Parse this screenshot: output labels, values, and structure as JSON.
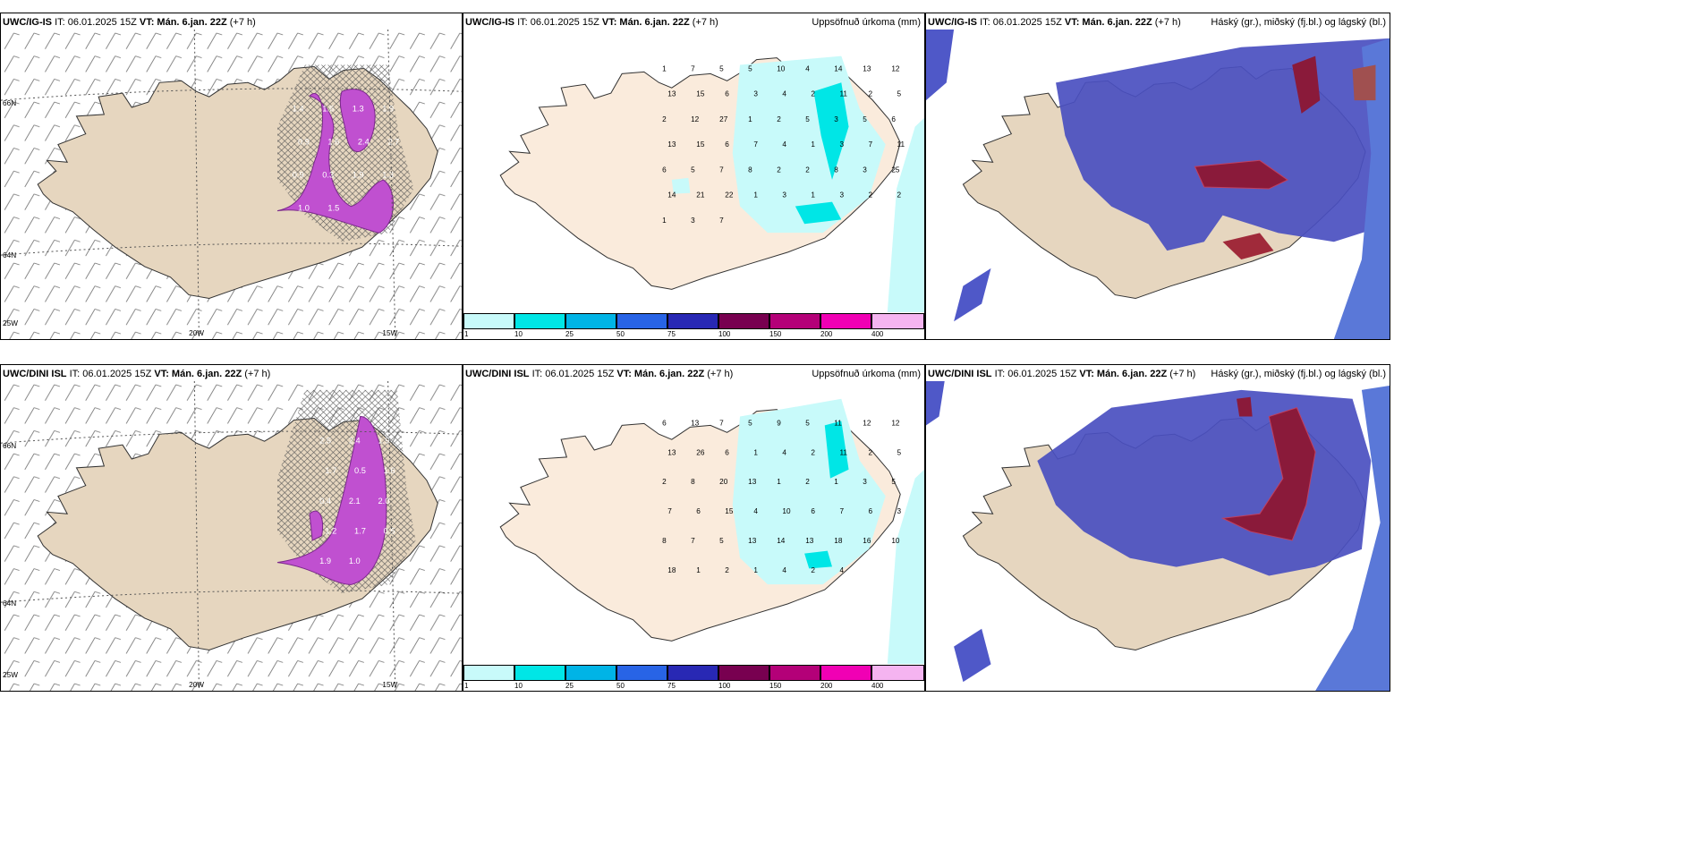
{
  "panels": [
    {
      "model": "UWC/IG-IS",
      "it": "IT: 06.01.2025 15Z",
      "vt": "VT: Mán. 6.jan. 22Z",
      "lead": "(+7 h)",
      "right": ""
    },
    {
      "model": "UWC/IG-IS",
      "it": "IT: 06.01.2025 15Z",
      "vt": "VT: Mán. 6.jan. 22Z",
      "lead": "(+7 h)",
      "right": "Uppsöfnuð úrkoma (mm)"
    },
    {
      "model": "UWC/IG-IS",
      "it": "IT: 06.01.2025 15Z",
      "vt": "VT: Mán. 6.jan. 22Z",
      "lead": "(+7 h)",
      "right": "Háský (gr.), miðský (fj.bl.) og lágský (bl.)"
    },
    {
      "model": "UWC/DINI ISL",
      "it": "IT: 06.01.2025 15Z",
      "vt": "VT: Mán. 6.jan. 22Z",
      "lead": "(+7 h)",
      "right": ""
    },
    {
      "model": "UWC/DINI ISL",
      "it": "IT: 06.01.2025 15Z",
      "vt": "VT: Mán. 6.jan. 22Z",
      "lead": "(+7 h)",
      "right": "Uppsöfnuð úrkoma (mm)"
    },
    {
      "model": "UWC/DINI ISL",
      "it": "IT: 06.01.2025 15Z",
      "vt": "VT: Mán. 6.jan. 22Z",
      "lead": "(+7 h)",
      "right": "Háský (gr.), miðský (fj.bl.) og lágský (bl.)"
    }
  ],
  "grid_labels": {
    "lat66": "66N",
    "lat64": "64N",
    "lat64b": "64N",
    "lon25": "25W",
    "lon20": "20W",
    "lon15": "15W"
  },
  "colorbar": {
    "ticks": [
      "1",
      "10",
      "25",
      "50",
      "75",
      "100",
      "150",
      "200",
      "400"
    ],
    "colors": [
      "#c8fafa",
      "#00e6e6",
      "#00b4e6",
      "#2864e6",
      "#2828b4",
      "#780050",
      "#b40078",
      "#f000b4",
      "#f5b4f0"
    ]
  },
  "precip_top": [
    "1",
    "7",
    "5",
    "5",
    "10",
    "4",
    "14",
    "13",
    "12",
    "13",
    "15",
    "6",
    "3",
    "4",
    "2",
    "11",
    "2",
    "5",
    "2",
    "12",
    "27",
    "1",
    "2",
    "5",
    "3",
    "5",
    "6",
    "13",
    "15",
    "6",
    "7",
    "4",
    "1",
    "3",
    "7",
    "11",
    "6",
    "5",
    "7",
    "8",
    "2",
    "2",
    "8",
    "3",
    "25",
    "14",
    "21",
    "22",
    "1",
    "3",
    "1",
    "3",
    "2",
    "2",
    "1",
    "3",
    "7"
  ],
  "precip_bottom": [
    "6",
    "13",
    "7",
    "5",
    "9",
    "5",
    "11",
    "12",
    "12",
    "13",
    "26",
    "6",
    "1",
    "4",
    "2",
    "11",
    "2",
    "5",
    "2",
    "8",
    "20",
    "13",
    "1",
    "2",
    "1",
    "3",
    "5",
    "7",
    "6",
    "15",
    "4",
    "10",
    "6",
    "7",
    "6",
    "3",
    "8",
    "7",
    "5",
    "13",
    "14",
    "13",
    "18",
    "16",
    "10",
    "18",
    "1",
    "2",
    "1",
    "4",
    "2",
    "4"
  ],
  "wind_top": [
    "1.4",
    "1.6",
    "1.3",
    "1.9",
    "0.9",
    "1.6",
    "2.4",
    "2.7",
    "0.9",
    "0.3",
    "1.9",
    "1.3",
    "1.0",
    "1.5"
  ],
  "wind_bottom": [
    "2.5",
    "2.4",
    "1.9",
    "1.7",
    "0.5",
    "1.6",
    "0.4",
    "2.1",
    "2.0",
    "1.2",
    "1.7",
    "0.5",
    "1.9",
    "1.0"
  ]
}
